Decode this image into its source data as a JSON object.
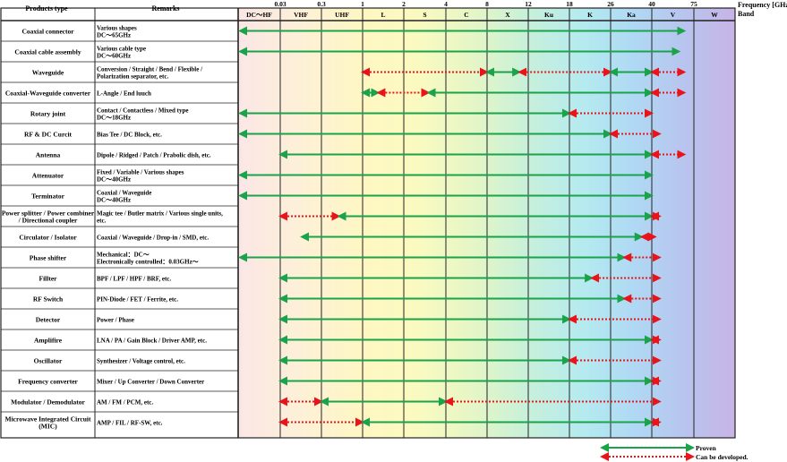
{
  "header": {
    "products_type": "Products type",
    "remarks": "Remarks",
    "freq_label": "Frequency [GHz]",
    "band_label": "Band"
  },
  "freq_ticks": [
    "0.03",
    "0.3",
    "1",
    "2",
    "4",
    "8",
    "12",
    "18",
    "26",
    "40",
    "75"
  ],
  "bands": [
    "DC〜HF",
    "VHF",
    "UHF",
    "L",
    "S",
    "C",
    "X",
    "Ku",
    "K",
    "Ka",
    "V",
    "W"
  ],
  "colors": {
    "proven": "#1aa34a",
    "can_be_developed": "#e8141a",
    "grid": "#222222"
  },
  "rows": [
    {
      "name": "Coaxial connector",
      "remarks": [
        "Various shapes",
        "DC〜65GHz"
      ],
      "segments": [
        {
          "type": "proven",
          "from": "DC",
          "to": 65
        }
      ]
    },
    {
      "name": "Coaxial cable assembly",
      "remarks": [
        "Various cable type",
        "DC〜60GHz"
      ],
      "segments": [
        {
          "type": "proven",
          "from": "DC",
          "to": 60
        }
      ]
    },
    {
      "name": "Waveguide",
      "remarks": [
        "Conversion / Straight / Bend / Flexible /",
        "Polarization separator, etc."
      ],
      "segments": [
        {
          "type": "developable",
          "from": 1,
          "to": 8
        },
        {
          "type": "proven",
          "from": 8,
          "to": 11
        },
        {
          "type": "developable",
          "from": 11,
          "to": 26
        },
        {
          "type": "proven",
          "from": 26,
          "to": 40
        },
        {
          "type": "developable",
          "from": 40,
          "to": 65
        }
      ]
    },
    {
      "name": "Coaxial-Waveguide converter",
      "remarks": [
        "L-Angle / End luuch"
      ],
      "segments": [
        {
          "type": "proven",
          "from": 1,
          "to": 1.3
        },
        {
          "type": "developable",
          "from": 1.3,
          "to": 3
        },
        {
          "type": "proven",
          "from": 3,
          "to": 40
        },
        {
          "type": "developable",
          "from": 40,
          "to": 65
        }
      ]
    },
    {
      "name": "Rotary joint",
      "remarks": [
        "Contact / Contactless / Mixed type",
        "DC〜18GHz"
      ],
      "segments": [
        {
          "type": "proven",
          "from": "DC",
          "to": 18
        },
        {
          "type": "developable",
          "from": 18,
          "to": 40
        }
      ]
    },
    {
      "name": "RF & DC Curcit",
      "remarks": [
        "Bias Tee / DC Block, etc."
      ],
      "segments": [
        {
          "type": "proven",
          "from": "DC",
          "to": 26
        },
        {
          "type": "developable",
          "from": 26,
          "to": 45
        }
      ]
    },
    {
      "name": "Antenna",
      "remarks": [
        "Dipole / Ridged / Patch / Prabolic dish, etc."
      ],
      "segments": [
        {
          "type": "proven",
          "from": 0.03,
          "to": 40
        },
        {
          "type": "developable",
          "from": 40,
          "to": 65
        }
      ]
    },
    {
      "name": "Attenuator",
      "remarks": [
        "Fixed / Variable / Various shapes",
        "DC〜40GHz"
      ],
      "segments": [
        {
          "type": "proven",
          "from": "DC",
          "to": 40
        }
      ]
    },
    {
      "name": "Terminator",
      "remarks": [
        "Coaxial / Waveguide",
        "DC〜40GHz"
      ],
      "segments": [
        {
          "type": "proven",
          "from": "DC",
          "to": 40
        }
      ]
    },
    {
      "name": "Power splitter / Power combiner / Directional coupler",
      "name_lines": [
        "Power splitter / Power combiner",
        "/ Directional coupler"
      ],
      "remarks": [
        "Magic tee / Butler matrix / Various single units,",
        "etc."
      ],
      "segments": [
        {
          "type": "developable",
          "from": 0.03,
          "to": 0.5
        },
        {
          "type": "proven",
          "from": 0.5,
          "to": 40
        },
        {
          "type": "developable",
          "from": 40,
          "to": 45
        }
      ]
    },
    {
      "name": "Circulator / Isolator",
      "remarks": [
        "Coaxial / Waveguide / Drop-in / SMD, etc."
      ],
      "segments": [
        {
          "type": "proven",
          "from": 0.1,
          "to": 36
        },
        {
          "type": "developable",
          "from": 36,
          "to": 42
        }
      ]
    },
    {
      "name": "Phase shifter",
      "remarks": [
        "Mechanical：DC〜",
        "Electronically controlled：0.03GHz〜"
      ],
      "segments": [
        {
          "type": "proven",
          "from": "DC",
          "to": 30
        },
        {
          "type": "developable",
          "from": 30,
          "to": 45
        }
      ]
    },
    {
      "name": "Fillter",
      "remarks": [
        "BPF / LPF / HPF / BRF, etc."
      ],
      "segments": [
        {
          "type": "proven",
          "from": 0.03,
          "to": 22
        },
        {
          "type": "developable",
          "from": 22,
          "to": 45
        }
      ]
    },
    {
      "name": "RF Switch",
      "remarks": [
        "PIN-Diode / FET / Ferrite, etc."
      ],
      "segments": [
        {
          "type": "proven",
          "from": 0.03,
          "to": 30
        },
        {
          "type": "developable",
          "from": 30,
          "to": 45
        }
      ]
    },
    {
      "name": "Detector",
      "remarks": [
        "Power / Phase"
      ],
      "segments": [
        {
          "type": "proven",
          "from": 0.03,
          "to": 18
        },
        {
          "type": "developable",
          "from": 18,
          "to": 45
        }
      ]
    },
    {
      "name": "Amplifire",
      "remarks": [
        "LNA / PA / Gain Block / Driver AMP, etc."
      ],
      "segments": [
        {
          "type": "proven",
          "from": 0.03,
          "to": 40
        },
        {
          "type": "developable",
          "from": 40,
          "to": 45
        }
      ]
    },
    {
      "name": "Oscillator",
      "remarks": [
        "Synthesizer / Voltage control, etc."
      ],
      "segments": [
        {
          "type": "proven",
          "from": 0.03,
          "to": 18
        },
        {
          "type": "developable",
          "from": 18,
          "to": 45
        }
      ]
    },
    {
      "name": "Frequency converter",
      "remarks": [
        "Mixer / Up Converter / Down Converter"
      ],
      "segments": [
        {
          "type": "proven",
          "from": 0.03,
          "to": 40
        },
        {
          "type": "developable",
          "from": 40,
          "to": 45
        }
      ]
    },
    {
      "name": "Modulator / Demodulator",
      "remarks": [
        "AM / FM / PCM, etc."
      ],
      "segments": [
        {
          "type": "developable",
          "from": 0.03,
          "to": 0.3
        },
        {
          "type": "proven",
          "from": 0.3,
          "to": 4
        },
        {
          "type": "developable",
          "from": 4,
          "to": 45
        }
      ]
    },
    {
      "name": "Microwave Integrated Circuit (MIC)",
      "name_lines": [
        "Microwave Integrated Circuit",
        "(MIC)"
      ],
      "remarks": [
        "AMP / FIL / RF-SW, etc."
      ],
      "segments": [
        {
          "type": "developable",
          "from": 0.03,
          "to": 1
        },
        {
          "type": "proven",
          "from": 1,
          "to": 40
        },
        {
          "type": "developable",
          "from": 40,
          "to": 45
        }
      ]
    }
  ],
  "legend": {
    "proven": "Proven",
    "can_be_developed": "Can be developed."
  }
}
